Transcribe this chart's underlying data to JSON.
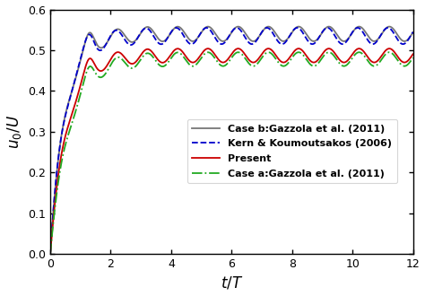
{
  "xlabel": "$t/T$",
  "ylabel": "$u_0/U$",
  "xlim": [
    0,
    12
  ],
  "ylim": [
    0,
    0.6
  ],
  "xticks": [
    0,
    2,
    4,
    6,
    8,
    10,
    12
  ],
  "yticks": [
    0,
    0.1,
    0.2,
    0.3,
    0.4,
    0.5,
    0.6
  ],
  "legend": [
    {
      "label": "Present",
      "color": "#cc0000",
      "linestyle": "solid",
      "linewidth": 1.3
    },
    {
      "label": "Case a:Gazzola et al. (2011)",
      "color": "#22aa22",
      "linestyle": "dashdot",
      "linewidth": 1.3
    },
    {
      "label": "Case b:Gazzola et al. (2011)",
      "color": "#777777",
      "linestyle": "solid",
      "linewidth": 1.3
    },
    {
      "label": "Kern & Koumoutsakos (2006)",
      "color": "#0000cc",
      "linestyle": "dashed",
      "linewidth": 1.3
    }
  ],
  "figsize": [
    4.74,
    3.3
  ],
  "dpi": 100,
  "present_mean": 0.487,
  "present_amp": 0.017,
  "case_a_mean": 0.478,
  "case_a_amp": 0.017,
  "case_b_mean": 0.54,
  "case_b_amp": 0.018,
  "kern_mean": 0.535,
  "kern_amp": 0.02,
  "osc_freq": 1.0
}
